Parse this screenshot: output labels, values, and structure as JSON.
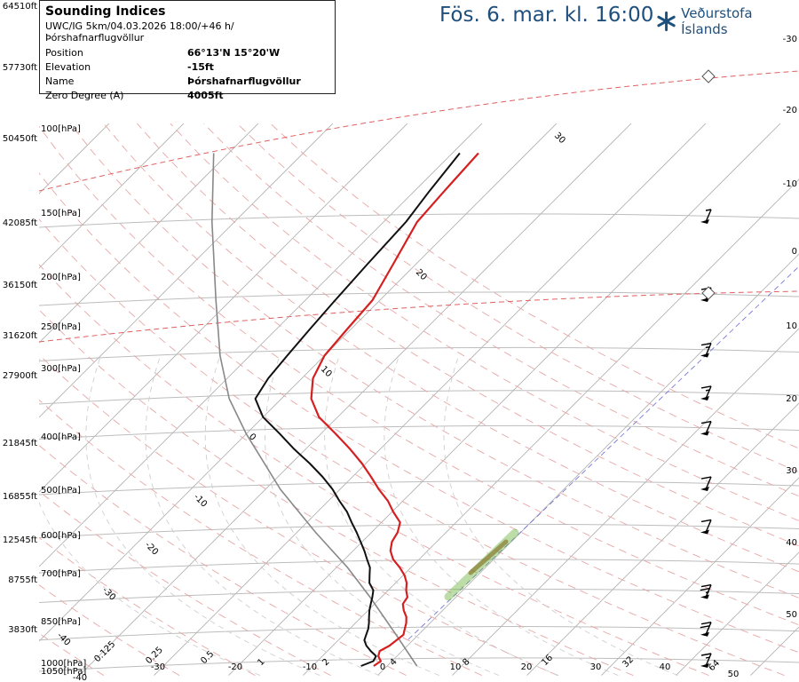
{
  "header": {
    "title": "Fös. 6. mar. kl. 16:00",
    "logo_text": "Veðurstofa Íslands"
  },
  "info": {
    "title": "Sounding Indices",
    "subtitle": "UWC/IG 5km/04.03.2026 18:00/+46 h/Þórshafnarflugvöllur",
    "rows": [
      {
        "label": "Position",
        "value": "66°13'N 15°20'W"
      },
      {
        "label": "Elevation",
        "value": "-15ft"
      },
      {
        "label": "Name",
        "value": "Þórshafnarflugvöllur"
      },
      {
        "label": "Zero Degree (A)",
        "value": "4005ft"
      }
    ]
  },
  "chart_data": {
    "type": "line",
    "title": "Skew-T log-P sounding",
    "colors": {
      "temperature": "#d42020",
      "dewpoint": "#111111",
      "parcel": "#888888",
      "mixing": "#6db33f",
      "isotherm": "#b5b5b5",
      "adiabat": "#e8a6a6"
    },
    "altitude_labels": [
      "64510ft",
      "57730ft",
      "50450ft",
      "42085ft",
      "36150ft",
      "31620ft",
      "27900ft",
      "21845ft",
      "16855ft",
      "12545ft",
      "8755ft",
      "3830ft"
    ],
    "pressure_levels": [
      {
        "label": "100[hPa]",
        "p": 100
      },
      {
        "label": "150[hPa]",
        "p": 150
      },
      {
        "label": "200[hPa]",
        "p": 200
      },
      {
        "label": "250[hPa]",
        "p": 250
      },
      {
        "label": "300[hPa]",
        "p": 300
      },
      {
        "label": "400[hPa]",
        "p": 400
      },
      {
        "label": "500[hPa]",
        "p": 500
      },
      {
        "label": "600[hPa]",
        "p": 600
      },
      {
        "label": "700[hPa]",
        "p": 700
      },
      {
        "label": "850[hPa]",
        "p": 850
      },
      {
        "label": "1000[hPa]",
        "p": 1000
      },
      {
        "label": "1050[hPa]",
        "p": 1050
      }
    ],
    "right_axis_labels": [
      "-30",
      "-20",
      "-10",
      "0",
      "10",
      "20",
      "30",
      "40",
      "50"
    ],
    "bottom_temp_labels": [
      "-40",
      "-30",
      "-20",
      "-10",
      "0",
      "10",
      "20",
      "30",
      "40",
      "50"
    ],
    "mixing_ratio_labels": [
      "0.125",
      "0.25",
      "0.5",
      "1",
      "2",
      "4",
      "8",
      "16",
      "32",
      "64"
    ],
    "isotherm_labels": [
      "-40",
      "-30",
      "-20",
      "-10",
      "0",
      "10",
      "20",
      "30"
    ],
    "temperature_series": {
      "name": "Temperature",
      "points": [
        [
          1000,
          -1.8
        ],
        [
          975,
          -1.5
        ],
        [
          950,
          -2.5
        ],
        [
          925,
          -3.0
        ],
        [
          900,
          -2.4
        ],
        [
          875,
          -2.2
        ],
        [
          850,
          -2.0
        ],
        [
          825,
          -2.6
        ],
        [
          800,
          -3.2
        ],
        [
          775,
          -4.0
        ],
        [
          750,
          -5.2
        ],
        [
          725,
          -6.2
        ],
        [
          700,
          -6.5
        ],
        [
          675,
          -7.6
        ],
        [
          650,
          -8.5
        ],
        [
          625,
          -9.8
        ],
        [
          600,
          -11.5
        ],
        [
          575,
          -13.5
        ],
        [
          550,
          -15.0
        ],
        [
          525,
          -16.0
        ],
        [
          500,
          -16.5
        ],
        [
          475,
          -17.5
        ],
        [
          450,
          -19.8
        ],
        [
          425,
          -22.0
        ],
        [
          400,
          -24.8
        ],
        [
          375,
          -27.5
        ],
        [
          350,
          -30.5
        ],
        [
          325,
          -34.0
        ],
        [
          300,
          -38.0
        ],
        [
          275,
          -42.5
        ],
        [
          250,
          -46.0
        ],
        [
          225,
          -48.5
        ],
        [
          200,
          -50.0
        ],
        [
          175,
          -50.5
        ],
        [
          150,
          -51.0
        ],
        [
          125,
          -53.0
        ],
        [
          100,
          -55.5
        ],
        [
          85,
          -56.0
        ],
        [
          70,
          -56.5
        ]
      ]
    },
    "dewpoint_series": {
      "name": "Dewpoint",
      "points": [
        [
          1000,
          -3.5
        ],
        [
          975,
          -2.5
        ],
        [
          950,
          -2.8
        ],
        [
          925,
          -4.2
        ],
        [
          900,
          -5.5
        ],
        [
          875,
          -6.5
        ],
        [
          850,
          -7.0
        ],
        [
          825,
          -7.5
        ],
        [
          800,
          -8.2
        ],
        [
          775,
          -9.0
        ],
        [
          750,
          -9.8
        ],
        [
          725,
          -10.5
        ],
        [
          700,
          -11.2
        ],
        [
          675,
          -12.0
        ],
        [
          650,
          -13.5
        ],
        [
          625,
          -14.5
        ],
        [
          600,
          -15.5
        ],
        [
          575,
          -17.0
        ],
        [
          550,
          -18.5
        ],
        [
          525,
          -20.2
        ],
        [
          500,
          -22.0
        ],
        [
          475,
          -24.0
        ],
        [
          450,
          -26.0
        ],
        [
          425,
          -28.5
        ],
        [
          400,
          -31.0
        ],
        [
          375,
          -34.0
        ],
        [
          350,
          -37.5
        ],
        [
          325,
          -41.5
        ],
        [
          300,
          -45.5
        ],
        [
          275,
          -50.0
        ],
        [
          250,
          -53.5
        ],
        [
          225,
          -54.5
        ],
        [
          200,
          -55.0
        ],
        [
          175,
          -55.5
        ],
        [
          150,
          -56.0
        ],
        [
          125,
          -56.5
        ],
        [
          100,
          -57.0
        ],
        [
          85,
          -58.0
        ],
        [
          70,
          -59.0
        ]
      ]
    },
    "parcel_series": {
      "name": "Parcel",
      "points": [
        [
          1000,
          4.0
        ],
        [
          850,
          -3.0
        ],
        [
          700,
          -11.5
        ],
        [
          600,
          -18.5
        ],
        [
          500,
          -27.5
        ],
        [
          400,
          -38.0
        ],
        [
          300,
          -50.0
        ],
        [
          250,
          -57.0
        ],
        [
          200,
          -64.0
        ],
        [
          150,
          -72.0
        ],
        [
          100,
          -83.0
        ],
        [
          70,
          -92.0
        ]
      ]
    },
    "wind_barbs": [
      {
        "p": 1000,
        "kt": 15
      },
      {
        "p": 850,
        "kt": 20
      },
      {
        "p": 700,
        "kt": 25
      },
      {
        "p": 500,
        "kt": 10
      },
      {
        "p": 400,
        "kt": 10
      },
      {
        "p": 300,
        "kt": 10
      },
      {
        "p": 250,
        "kt": 15
      },
      {
        "p": 200,
        "kt": 15
      },
      {
        "p": 150,
        "kt": 10
      },
      {
        "p": 100,
        "kt": 5
      }
    ]
  }
}
